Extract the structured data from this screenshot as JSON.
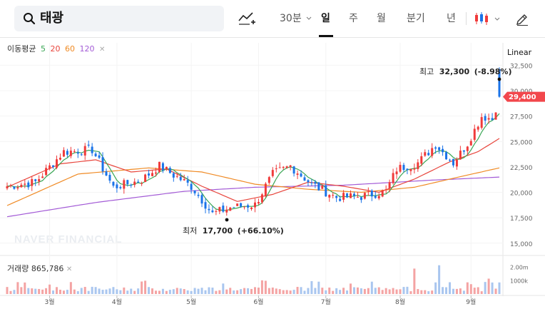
{
  "search": {
    "value": "태광"
  },
  "toolbar": {
    "interval_30m": "30분",
    "tab_day": "일",
    "tab_week": "주",
    "tab_month": "월",
    "tab_quarter": "분기",
    "tab_year": "년",
    "active_tab": "일",
    "icons": [
      "search-icon",
      "chart-compare-icon",
      "chevron-down-icon",
      "candle-type-icon",
      "pencil-icon"
    ]
  },
  "legend": {
    "ma_label": "이동평균",
    "ma_periods": [
      {
        "label": "5",
        "color": "#3aa655"
      },
      {
        "label": "20",
        "color": "#e8453c"
      },
      {
        "label": "60",
        "color": "#f08a24"
      },
      {
        "label": "120",
        "color": "#a35bd6"
      }
    ],
    "scale_label": "Linear",
    "volume_label": "거래량",
    "volume_value": "865,786"
  },
  "annotations": {
    "high": {
      "label": "최고",
      "value": "32,300",
      "change": "(-8.98%)"
    },
    "low": {
      "label": "최저",
      "value": "17,700",
      "change": "(+66.10%)"
    },
    "current_price": "29,400"
  },
  "watermark": "NAVER FINANCIAL",
  "colors": {
    "up": "#f03a3a",
    "down": "#1a73e8",
    "badge": "#f2474c",
    "ma5": "#3aa655",
    "ma20": "#e8453c",
    "ma60": "#f08a24",
    "ma120": "#a35bd6",
    "vol_up": "#f4a3a3",
    "vol_down": "#a9c6ef"
  },
  "chart_data": {
    "type": "candlestick",
    "y_axis_ticks": [
      "32,500",
      "30,000",
      "27,500",
      "25,000",
      "22,500",
      "20,000",
      "17,500",
      "15,000"
    ],
    "y_axis_values": [
      32500,
      30000,
      27500,
      25000,
      22500,
      20000,
      17500,
      15000
    ],
    "ylim": [
      14000,
      33300
    ],
    "x_axis_labels": [
      "3월",
      "4월",
      "5월",
      "6월",
      "7월",
      "8월",
      "9월"
    ],
    "volume_axis_ticks": [
      "2.00m",
      "1000k"
    ],
    "volume_axis_values": [
      2000000,
      1000000
    ],
    "volume_ylim": [
      0,
      3200000
    ],
    "candle_count": 140,
    "month_start_index": {
      "3월": 12,
      "4월": 31,
      "5월": 52,
      "6월": 71,
      "7월": 90,
      "8월": 111,
      "9월": 131
    },
    "key_closes": [
      {
        "index": 0,
        "value": 20600
      },
      {
        "index": 8,
        "value": 21000
      },
      {
        "index": 16,
        "value": 24000
      },
      {
        "index": 24,
        "value": 24200
      },
      {
        "index": 30,
        "value": 20500
      },
      {
        "index": 38,
        "value": 21200
      },
      {
        "index": 43,
        "value": 22600
      },
      {
        "index": 52,
        "value": 20600
      },
      {
        "index": 58,
        "value": 17900
      },
      {
        "index": 63,
        "value": 18500
      },
      {
        "index": 70,
        "value": 18800
      },
      {
        "index": 75,
        "value": 21800
      },
      {
        "index": 80,
        "value": 22600
      },
      {
        "index": 86,
        "value": 20800
      },
      {
        "index": 93,
        "value": 19500
      },
      {
        "index": 100,
        "value": 19600
      },
      {
        "index": 107,
        "value": 20100
      },
      {
        "index": 110,
        "value": 22300
      },
      {
        "index": 116,
        "value": 22900
      },
      {
        "index": 121,
        "value": 24700
      },
      {
        "index": 126,
        "value": 22900
      },
      {
        "index": 130,
        "value": 24800
      },
      {
        "index": 134,
        "value": 27500
      },
      {
        "index": 137,
        "value": 27200
      },
      {
        "index": 139,
        "value": 29400
      }
    ],
    "high": {
      "index": 139,
      "value": 32300
    },
    "low": {
      "index": 62,
      "value": 17700
    },
    "moving_averages": {
      "ma120": [
        {
          "index": 0,
          "value": 17600
        },
        {
          "index": 25,
          "value": 19000
        },
        {
          "index": 50,
          "value": 20100
        },
        {
          "index": 70,
          "value": 20500
        },
        {
          "index": 95,
          "value": 20700
        },
        {
          "index": 120,
          "value": 21200
        },
        {
          "index": 139,
          "value": 21500
        }
      ],
      "ma60": [
        {
          "index": 0,
          "value": 18700
        },
        {
          "index": 20,
          "value": 21800
        },
        {
          "index": 40,
          "value": 22400
        },
        {
          "index": 55,
          "value": 22000
        },
        {
          "index": 70,
          "value": 20800
        },
        {
          "index": 85,
          "value": 20300
        },
        {
          "index": 100,
          "value": 20000
        },
        {
          "index": 115,
          "value": 20500
        },
        {
          "index": 130,
          "value": 21700
        },
        {
          "index": 139,
          "value": 22400
        }
      ],
      "ma20": [
        {
          "index": 0,
          "value": 20500
        },
        {
          "index": 15,
          "value": 22800
        },
        {
          "index": 25,
          "value": 23200
        },
        {
          "index": 35,
          "value": 22000
        },
        {
          "index": 45,
          "value": 22300
        },
        {
          "index": 55,
          "value": 20600
        },
        {
          "index": 65,
          "value": 19100
        },
        {
          "index": 75,
          "value": 19800
        },
        {
          "index": 85,
          "value": 21000
        },
        {
          "index": 95,
          "value": 20600
        },
        {
          "index": 105,
          "value": 20000
        },
        {
          "index": 115,
          "value": 21300
        },
        {
          "index": 125,
          "value": 23000
        },
        {
          "index": 133,
          "value": 24000
        },
        {
          "index": 139,
          "value": 25300
        }
      ],
      "ma5": "computed from closes"
    }
  }
}
